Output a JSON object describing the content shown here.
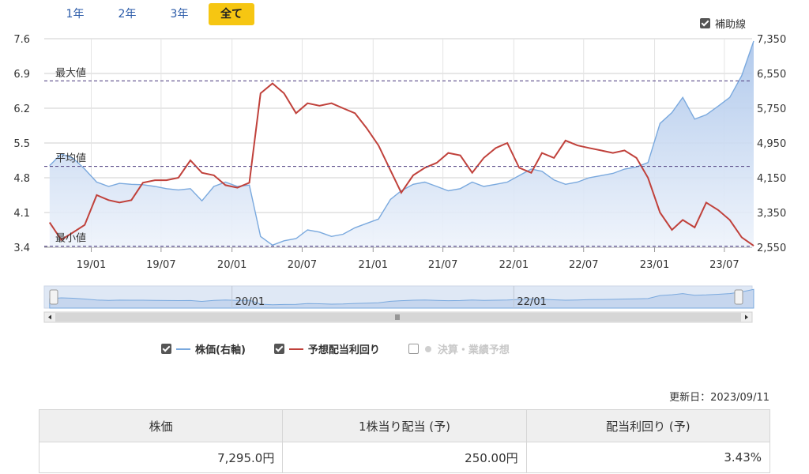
{
  "tabs": [
    {
      "label": "1年",
      "active": false
    },
    {
      "label": "2年",
      "active": false
    },
    {
      "label": "3年",
      "active": false
    },
    {
      "label": "全て",
      "active": true
    }
  ],
  "aux_lines": {
    "label": "補助線",
    "checked": true
  },
  "chart_data": {
    "type": "line",
    "x_ticks": [
      "19/01",
      "19/07",
      "20/01",
      "20/07",
      "21/01",
      "21/07",
      "22/01",
      "22/07",
      "23/01",
      "23/07"
    ],
    "y_left": {
      "ticks": [
        "3.4",
        "4.1",
        "4.8",
        "5.5",
        "6.2",
        "6.9",
        "7.6"
      ],
      "range": [
        3.4,
        7.6
      ]
    },
    "y_right": {
      "ticks": [
        "2,550",
        "3,350",
        "4,150",
        "4,950",
        "5,750",
        "6,550",
        "7,350"
      ],
      "range": [
        2550,
        7350
      ]
    },
    "reference_lines": [
      {
        "label": "最大値",
        "value": 6.75
      },
      {
        "label": "平均値",
        "value": 5.03
      },
      {
        "label": "最小値",
        "value": 3.42
      }
    ],
    "series": [
      {
        "name": "株価(右軸)",
        "color": "#7aa9de",
        "axis": "right",
        "points": [
          [
            "2018-09",
            4430
          ],
          [
            "2018-10",
            4700
          ],
          [
            "2018-11",
            4600
          ],
          [
            "2018-12",
            4350
          ],
          [
            "2019-01",
            4050
          ],
          [
            "2019-02",
            3950
          ],
          [
            "2019-03",
            4020
          ],
          [
            "2019-04",
            4000
          ],
          [
            "2019-05",
            3990
          ],
          [
            "2019-06",
            3950
          ],
          [
            "2019-07",
            3900
          ],
          [
            "2019-08",
            3870
          ],
          [
            "2019-09",
            3900
          ],
          [
            "2019-10",
            3620
          ],
          [
            "2019-11",
            3950
          ],
          [
            "2019-12",
            4050
          ],
          [
            "2020-01",
            3950
          ],
          [
            "2020-02",
            3980
          ],
          [
            "2020-03",
            2800
          ],
          [
            "2020-04",
            2600
          ],
          [
            "2020-05",
            2700
          ],
          [
            "2020-06",
            2750
          ],
          [
            "2020-07",
            2950
          ],
          [
            "2020-08",
            2900
          ],
          [
            "2020-09",
            2800
          ],
          [
            "2020-10",
            2850
          ],
          [
            "2020-11",
            3000
          ],
          [
            "2020-12",
            3100
          ],
          [
            "2021-01",
            3200
          ],
          [
            "2021-02",
            3650
          ],
          [
            "2021-03",
            3850
          ],
          [
            "2021-04",
            4000
          ],
          [
            "2021-05",
            4050
          ],
          [
            "2021-06",
            3950
          ],
          [
            "2021-07",
            3850
          ],
          [
            "2021-08",
            3900
          ],
          [
            "2021-09",
            4050
          ],
          [
            "2021-10",
            3950
          ],
          [
            "2021-11",
            4000
          ],
          [
            "2021-12",
            4050
          ],
          [
            "2022-01",
            4200
          ],
          [
            "2022-02",
            4350
          ],
          [
            "2022-03",
            4300
          ],
          [
            "2022-04",
            4100
          ],
          [
            "2022-05",
            4000
          ],
          [
            "2022-06",
            4050
          ],
          [
            "2022-07",
            4150
          ],
          [
            "2022-08",
            4200
          ],
          [
            "2022-09",
            4250
          ],
          [
            "2022-10",
            4350
          ],
          [
            "2022-11",
            4400
          ],
          [
            "2022-12",
            4500
          ],
          [
            "2023-01",
            5400
          ],
          [
            "2023-02",
            5650
          ],
          [
            "2023-03",
            6000
          ],
          [
            "2023-04",
            5500
          ],
          [
            "2023-05",
            5600
          ],
          [
            "2023-06",
            5800
          ],
          [
            "2023-07",
            6000
          ],
          [
            "2023-08",
            6500
          ],
          [
            "2023-09",
            7295
          ]
        ]
      },
      {
        "name": "予想配当利回り",
        "color": "#c0413b",
        "axis": "left",
        "points": [
          [
            "2018-09",
            3.9
          ],
          [
            "2018-10",
            3.55
          ],
          [
            "2018-11",
            3.7
          ],
          [
            "2018-12",
            3.85
          ],
          [
            "2019-01",
            4.45
          ],
          [
            "2019-02",
            4.35
          ],
          [
            "2019-03",
            4.3
          ],
          [
            "2019-04",
            4.35
          ],
          [
            "2019-05",
            4.7
          ],
          [
            "2019-06",
            4.75
          ],
          [
            "2019-07",
            4.75
          ],
          [
            "2019-08",
            4.8
          ],
          [
            "2019-09",
            5.15
          ],
          [
            "2019-10",
            4.9
          ],
          [
            "2019-11",
            4.85
          ],
          [
            "2019-12",
            4.65
          ],
          [
            "2020-01",
            4.6
          ],
          [
            "2020-02",
            4.7
          ],
          [
            "2020-03",
            6.5
          ],
          [
            "2020-04",
            6.7
          ],
          [
            "2020-05",
            6.5
          ],
          [
            "2020-06",
            6.1
          ],
          [
            "2020-07",
            6.3
          ],
          [
            "2020-08",
            6.25
          ],
          [
            "2020-09",
            6.3
          ],
          [
            "2020-10",
            6.2
          ],
          [
            "2020-11",
            6.1
          ],
          [
            "2020-12",
            5.8
          ],
          [
            "2021-01",
            5.45
          ],
          [
            "2021-02",
            4.95
          ],
          [
            "2021-03",
            4.5
          ],
          [
            "2021-04",
            4.85
          ],
          [
            "2021-05",
            5.0
          ],
          [
            "2021-06",
            5.1
          ],
          [
            "2021-07",
            5.3
          ],
          [
            "2021-08",
            5.25
          ],
          [
            "2021-09",
            4.9
          ],
          [
            "2021-10",
            5.2
          ],
          [
            "2021-11",
            5.4
          ],
          [
            "2021-12",
            5.5
          ],
          [
            "2022-01",
            5.0
          ],
          [
            "2022-02",
            4.9
          ],
          [
            "2022-03",
            5.3
          ],
          [
            "2022-04",
            5.2
          ],
          [
            "2022-05",
            5.55
          ],
          [
            "2022-06",
            5.45
          ],
          [
            "2022-07",
            5.4
          ],
          [
            "2022-08",
            5.35
          ],
          [
            "2022-09",
            5.3
          ],
          [
            "2022-10",
            5.35
          ],
          [
            "2022-11",
            5.2
          ],
          [
            "2022-12",
            4.8
          ],
          [
            "2023-01",
            4.1
          ],
          [
            "2023-02",
            3.75
          ],
          [
            "2023-03",
            3.95
          ],
          [
            "2023-04",
            3.8
          ],
          [
            "2023-05",
            4.3
          ],
          [
            "2023-06",
            4.15
          ],
          [
            "2023-07",
            3.95
          ],
          [
            "2023-08",
            3.6
          ],
          [
            "2023-09",
            3.43
          ]
        ]
      }
    ],
    "navigator": {
      "x_ticks": [
        "20/01",
        "22/01"
      ]
    }
  },
  "legend": [
    {
      "label": "株価(右軸)",
      "color": "#7aa9de",
      "checked": true,
      "enabled": true
    },
    {
      "label": "予想配当利回り",
      "color": "#c0413b",
      "checked": true,
      "enabled": true
    },
    {
      "label": "決算・業績予想",
      "color": "#cfcfcf",
      "checked": false,
      "enabled": false
    }
  ],
  "updated": "更新日：2023/09/11",
  "summary": {
    "headers": [
      "株価",
      "1株当り配当 (予)",
      "配当利回り (予)"
    ],
    "values": [
      "7,295.0円",
      "250.00円",
      "3.43%"
    ]
  }
}
